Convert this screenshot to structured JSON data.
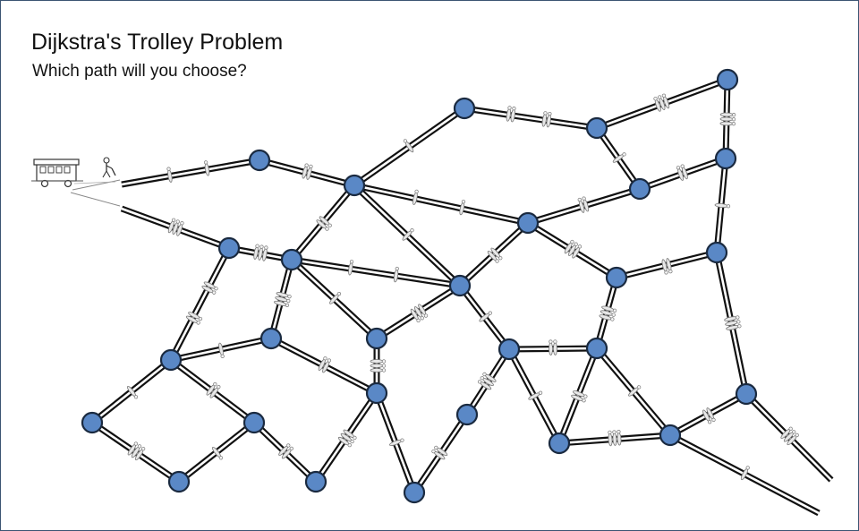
{
  "header": {
    "title": "Dijkstra's Trolley Problem",
    "subtitle": "Which path will you choose?"
  },
  "colors": {
    "node_fill": "#5a88c6",
    "node_stroke": "#1a2a40",
    "rail": "#111111",
    "frame": "#3b5472"
  },
  "icons": {
    "trolley": "trolley-icon",
    "lever_person": "lever-operator-icon",
    "tied_person": "tied-person-icon"
  },
  "graph": {
    "node_count": 30,
    "track_count": 46,
    "tied_people_groups": 40
  }
}
